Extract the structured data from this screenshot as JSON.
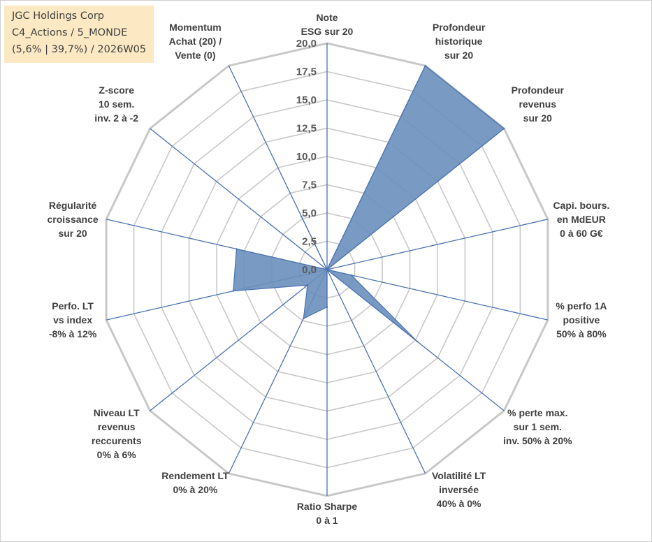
{
  "info_box": {
    "line1": "JGC Holdings Corp",
    "line2": "C4_Actions / 5_MONDE",
    "line3": "(5,6% | 39,7%) / 2026W05"
  },
  "chart_data": {
    "type": "radar",
    "axes": [
      [
        "Note",
        "ESG sur 20"
      ],
      [
        "Profondeur",
        "historique",
        "sur 20"
      ],
      [
        "Profondeur",
        "revenus",
        "sur 20"
      ],
      [
        "Capi. bours.",
        "en MdEUR",
        "0 à 60 G€"
      ],
      [
        "% perfo 1A",
        "positive",
        "50% à 80%"
      ],
      [
        "% perte max.",
        "sur 1 sem.",
        "inv. 50% à 20%"
      ],
      [
        "Volatilité LT",
        "inversée",
        "40% à 0%"
      ],
      [
        "Ratio Sharpe",
        "0 à 1"
      ],
      [
        "Rendement LT",
        "0% à 20%"
      ],
      [
        "Niveau LT",
        "revenus",
        "reccurents",
        "0% à 6%"
      ],
      [
        "Perfo. LT",
        "vs index",
        "-8% à 12%"
      ],
      [
        "Régularité",
        "croissance",
        "sur 20"
      ],
      [
        "Z-score",
        "10 sem.",
        "inv. 2 à -2"
      ],
      [
        "Momentum",
        "Achat (20) /",
        "Vente (0)"
      ]
    ],
    "values": [
      0,
      20,
      20,
      0,
      2.2,
      10.2,
      0,
      3.3,
      4.8,
      2.2,
      8.5,
      8.2,
      0,
      5.2
    ],
    "scale": {
      "min": 0,
      "max": 20,
      "step": 2.5
    },
    "tick_labels": [
      "0,0",
      "2,5",
      "5,0",
      "7,5",
      "10,0",
      "12,5",
      "15,0",
      "17,5",
      "20,0"
    ],
    "colors": {
      "fill": "#6a8fbd",
      "stroke": "#4a72b0",
      "grid": "#c8c8c8",
      "spoke": "#4a72b0"
    }
  }
}
